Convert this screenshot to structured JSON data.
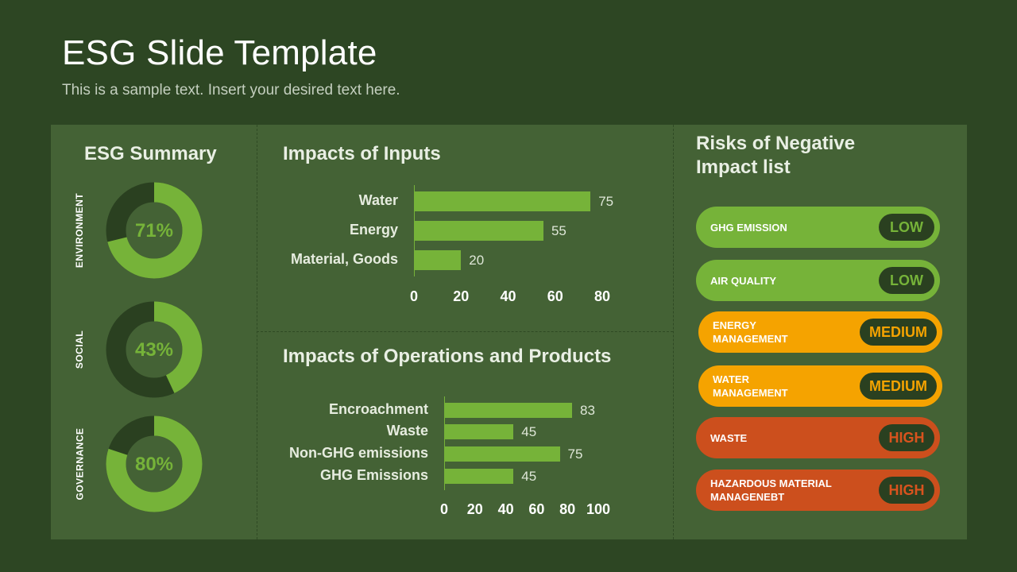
{
  "header": {
    "title": "ESG Slide Template",
    "subtitle": "This is a sample text. Insert your desired text here."
  },
  "summary": {
    "title": "ESG Summary",
    "items": [
      {
        "label": "ENVIRONMENT",
        "percent_text": "71%",
        "value": 0.71
      },
      {
        "label": "SOCIAL",
        "percent_text": "43%",
        "value": 0.43
      },
      {
        "label": "GOVERNANCE",
        "percent_text": "80%",
        "value": 0.8
      }
    ]
  },
  "inputs": {
    "title": "Impacts of Inputs"
  },
  "operations": {
    "title": "Impacts of Operations and Products"
  },
  "risks": {
    "title_line1": "Risks of Negative",
    "title_line2": "Impact list",
    "items": [
      {
        "name": "GHG EMISSION",
        "level": "LOW"
      },
      {
        "name": "AIR QUALITY",
        "level": "LOW"
      },
      {
        "name": "ENERGY MANAGEMENT",
        "level": "MEDIUM"
      },
      {
        "name": "WATER MANAGEMENT",
        "level": "MEDIUM"
      },
      {
        "name": "WASTE",
        "level": "HIGH"
      },
      {
        "name": "HAZARDOUS MATERIAL MANAGENEBT",
        "level": "HIGH"
      }
    ]
  },
  "colors": {
    "background": "#2d4623",
    "panel": "#446235",
    "accent_green": "#76b339",
    "dark_green": "#2a4020",
    "low": "#76b339",
    "medium": "#f5a300",
    "high": "#cc4f1d",
    "medium_text": "#f5a300",
    "high_text": "#d9531e",
    "low_text": "#76b339"
  },
  "chart_data": [
    {
      "type": "bar",
      "orientation": "horizontal",
      "title": "Impacts of Inputs",
      "categories": [
        "Water",
        "Energy",
        "Material, Goods"
      ],
      "values": [
        75,
        55,
        20
      ],
      "xlim": [
        0,
        80
      ],
      "ticks": [
        0,
        20,
        40,
        60,
        80
      ],
      "grid": false
    },
    {
      "type": "bar",
      "orientation": "horizontal",
      "title": "Impacts of Operations and Products",
      "categories": [
        "Encroachment",
        "Waste",
        "Non-GHG emissions",
        "GHG Emissions"
      ],
      "values": [
        83,
        45,
        75,
        45
      ],
      "xlim": [
        0,
        100
      ],
      "ticks": [
        0,
        20,
        40,
        60,
        80,
        100
      ],
      "grid": false
    }
  ]
}
